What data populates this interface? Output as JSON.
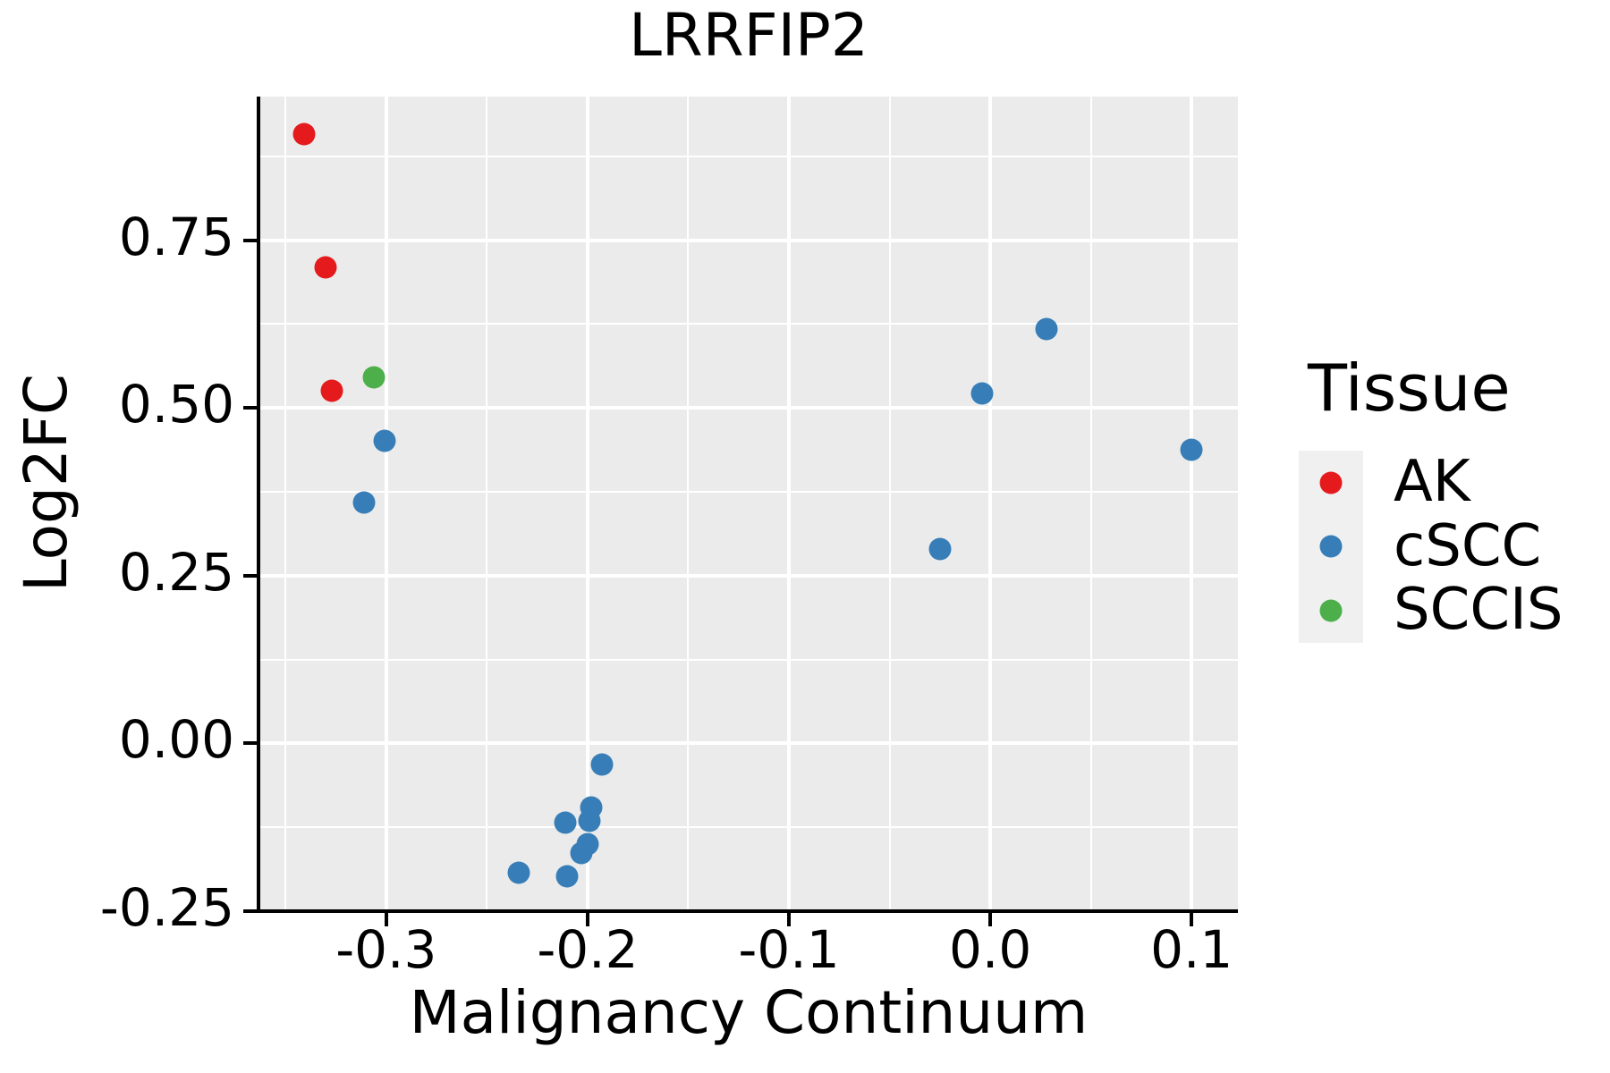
{
  "chart_data": {
    "type": "scatter",
    "title": "LRRFIP2",
    "xlabel": "Malignancy Continuum",
    "ylabel": "Log2FC",
    "xlim": [
      -0.363,
      0.123
    ],
    "ylim": [
      -0.25,
      0.964
    ],
    "grid": {
      "enabled": true,
      "panel_background": "#EBEBEB",
      "gridline_color": "#FFFFFF"
    },
    "x_major_ticks": [
      {
        "value": -0.3,
        "label": "-0.3"
      },
      {
        "value": -0.2,
        "label": "-0.2"
      },
      {
        "value": -0.1,
        "label": "-0.1"
      },
      {
        "value": 0.0,
        "label": "0.0"
      },
      {
        "value": 0.1,
        "label": "0.1"
      }
    ],
    "x_minor_ticks": [
      -0.35,
      -0.25,
      -0.15,
      -0.05,
      0.05
    ],
    "y_major_ticks": [
      {
        "value": 0.75,
        "label": "0.75"
      },
      {
        "value": 0.5,
        "label": "0.50"
      },
      {
        "value": 0.25,
        "label": "0.25"
      },
      {
        "value": 0.0,
        "label": "0.00"
      },
      {
        "value": -0.25,
        "label": "-0.25"
      }
    ],
    "y_minor_ticks": [
      0.875,
      0.625,
      0.375,
      0.125,
      -0.125
    ],
    "legend": {
      "title": "Tissue",
      "position": "right"
    },
    "series": [
      {
        "name": "AK",
        "color": "#E41A1C",
        "points": [
          {
            "x": -0.341,
            "y": 0.908
          },
          {
            "x": -0.33,
            "y": 0.71
          },
          {
            "x": -0.327,
            "y": 0.526
          }
        ]
      },
      {
        "name": "cSCC",
        "color": "#377EB8",
        "points": [
          {
            "x": -0.301,
            "y": 0.451
          },
          {
            "x": -0.311,
            "y": 0.359
          },
          {
            "x": 0.028,
            "y": 0.618
          },
          {
            "x": -0.004,
            "y": 0.521
          },
          {
            "x": 0.1,
            "y": 0.438
          },
          {
            "x": -0.025,
            "y": 0.29
          },
          {
            "x": -0.193,
            "y": -0.032
          },
          {
            "x": -0.198,
            "y": -0.095
          },
          {
            "x": -0.199,
            "y": -0.115
          },
          {
            "x": -0.211,
            "y": -0.118
          },
          {
            "x": -0.2,
            "y": -0.15
          },
          {
            "x": -0.203,
            "y": -0.163
          },
          {
            "x": -0.234,
            "y": -0.193
          },
          {
            "x": -0.21,
            "y": -0.198
          }
        ]
      },
      {
        "name": "SCCIS",
        "color": "#4DAF4A",
        "points": [
          {
            "x": -0.306,
            "y": 0.546
          }
        ]
      }
    ]
  }
}
